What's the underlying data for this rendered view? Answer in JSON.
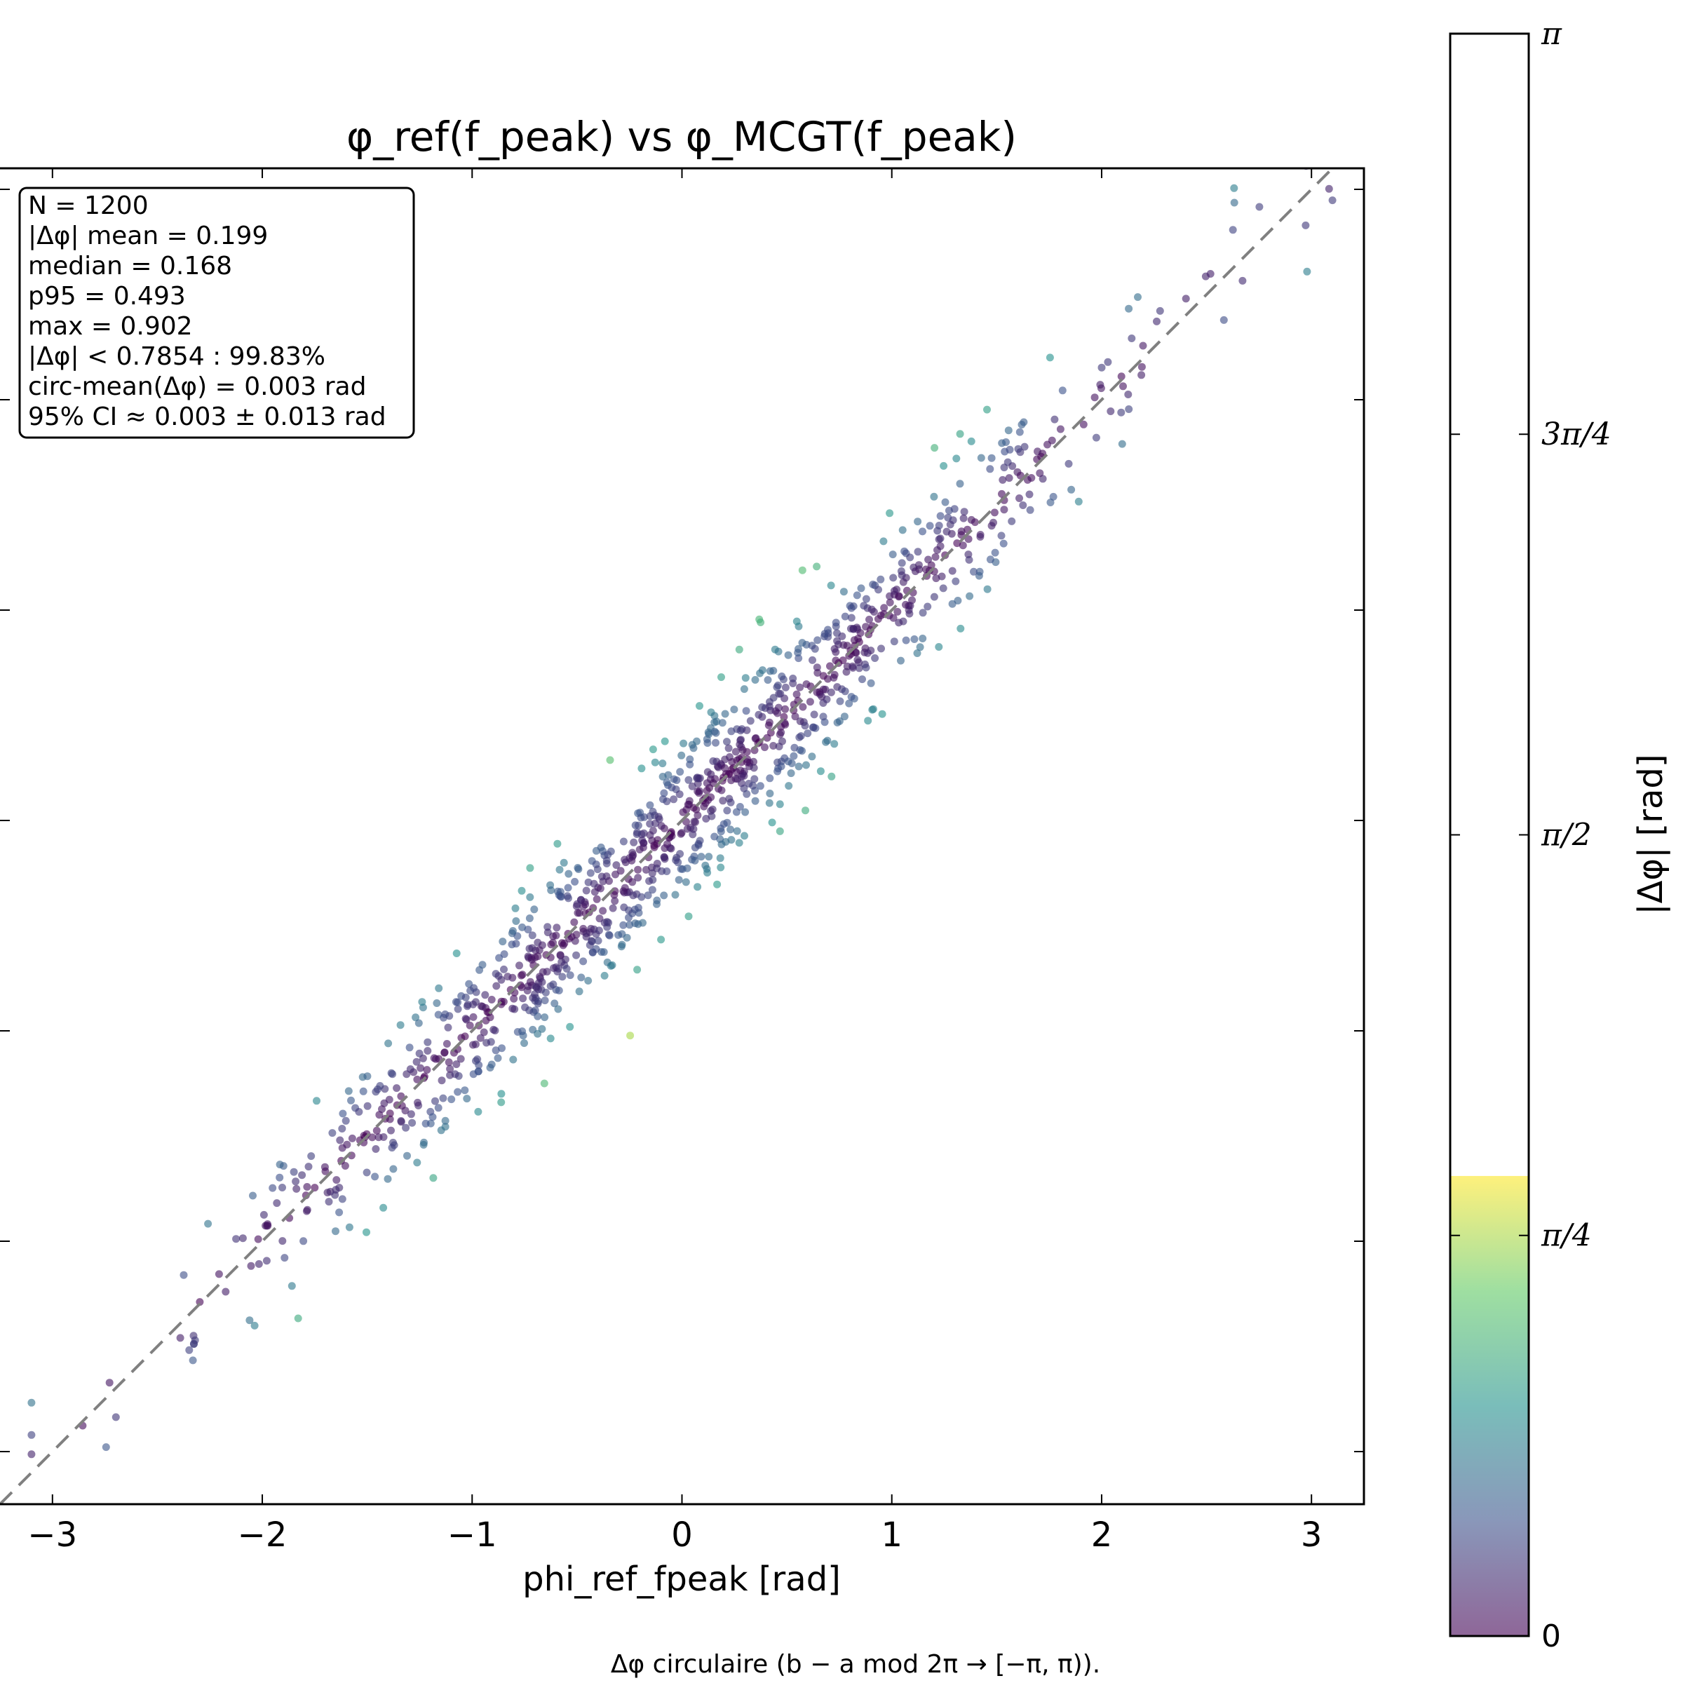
{
  "chart_data": {
    "type": "scatter",
    "title": "φ_ref(f_peak) vs φ_MCGT(f_peak)",
    "xlabel": "phi_ref_fpeak [rad]",
    "ylabel": "",
    "xlim": [
      -3.25,
      3.25
    ],
    "ylim": [
      -3.25,
      3.1
    ],
    "x_ticks": [
      -3,
      -2,
      -1,
      0,
      1,
      2,
      3
    ],
    "x_tick_labels": [
      "−3",
      "−2",
      "−1",
      "0",
      "1",
      "2",
      "3"
    ],
    "y_ticks": [
      -3,
      -2,
      -1,
      0,
      1,
      2,
      3
    ],
    "grid": false,
    "reference_line": {
      "style": "dashed",
      "color": "#808080",
      "slope": 1,
      "intercept": 0
    },
    "n_points": 1200,
    "marker_alpha": 0.6,
    "stats_box": {
      "placement": "top-left",
      "lines": [
        "N = 1200",
        "|Δφ| mean = 0.199",
        "median = 0.168",
        "p95 = 0.493",
        "max = 0.902",
        "|Δφ| < 0.7854 : 99.83%",
        "circ-mean(Δφ) = 0.003 rad",
        "95% CI ≈ 0.003 ± 0.013 rad"
      ]
    },
    "stats": {
      "N": 1200,
      "abs_dphi_mean": 0.199,
      "abs_dphi_median": 0.168,
      "abs_dphi_p95": 0.493,
      "abs_dphi_max": 0.902,
      "threshold": 0.7854,
      "fraction_below_threshold_pct": 99.83,
      "circ_mean_dphi": 0.003,
      "ci95_halfwidth": 0.013
    },
    "colorbar": {
      "label": "|Δφ| [rad]",
      "range": [
        0,
        3.14159
      ],
      "colored_range": [
        0,
        0.902
      ],
      "colormap": "viridis",
      "ticks": [
        0,
        0.7854,
        1.5708,
        2.3562,
        3.14159
      ],
      "tick_labels": [
        "0",
        "π/4",
        "π/2",
        "3π/4",
        "π"
      ]
    },
    "footnote": "Δφ circulaire (b − a mod 2π → [−π, π))."
  },
  "colors": {
    "viridis": [
      "#440154",
      "#3b528b",
      "#21918c",
      "#5ec962",
      "#fde725"
    ],
    "ref_line": "#808080",
    "frame": "#000000"
  }
}
